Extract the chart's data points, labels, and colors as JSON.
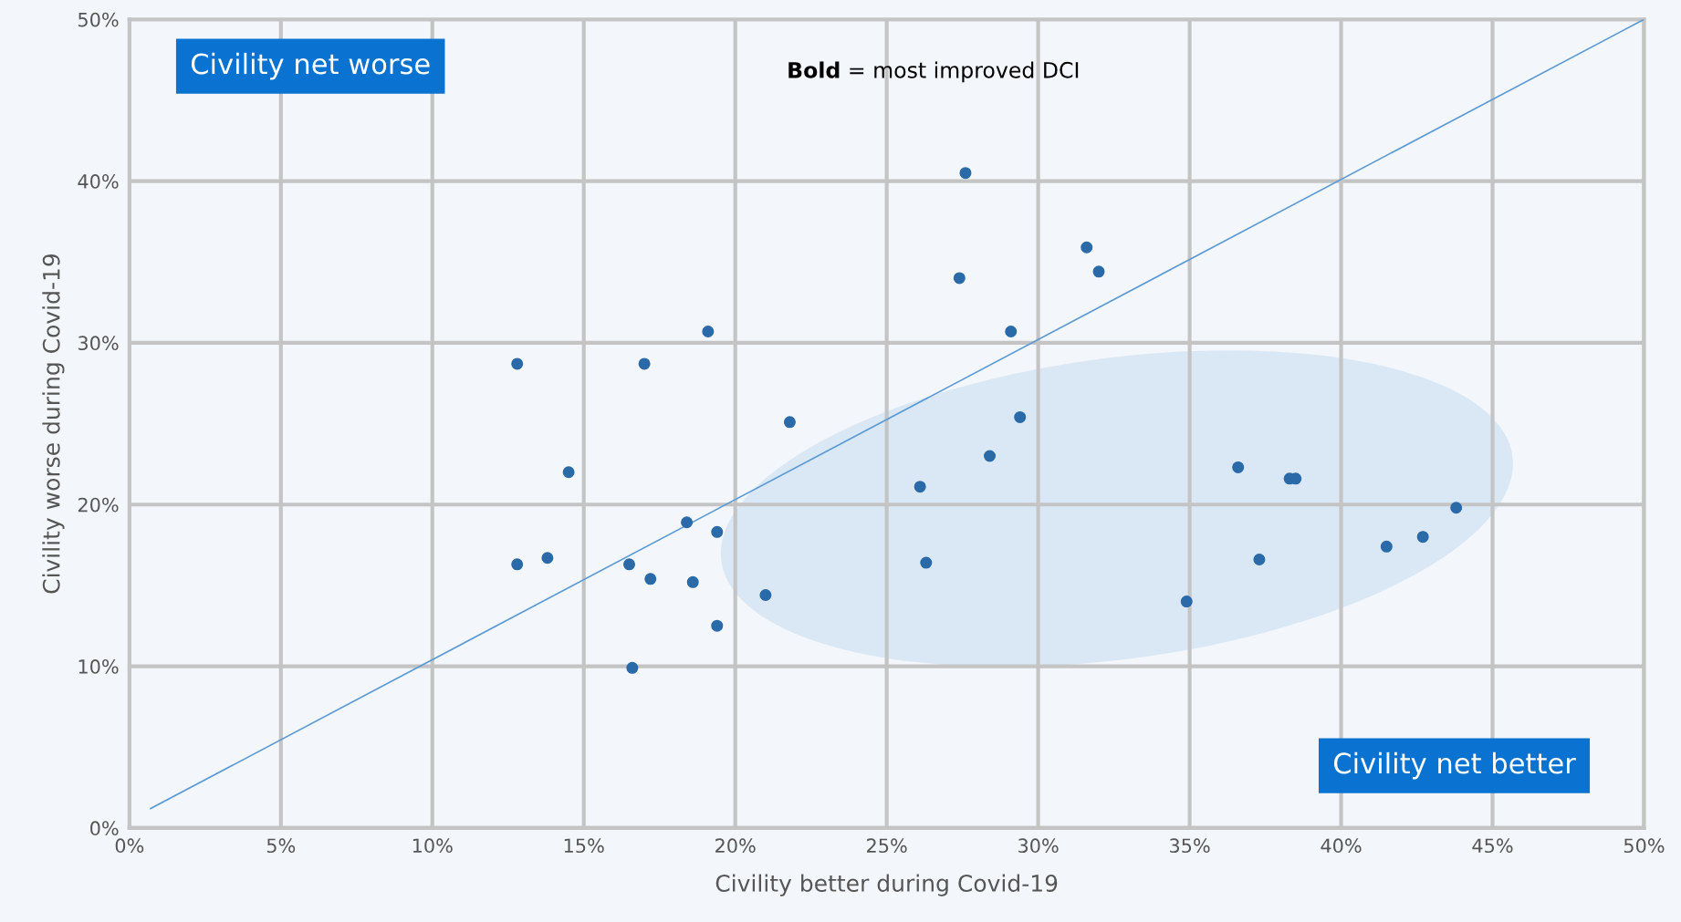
{
  "chart_data": {
    "type": "scatter",
    "xlabel": "Civility better during Covid-19",
    "ylabel": "Civility worse during Covid-19",
    "annotations": [
      "Civility net worse",
      "Civility net better",
      "Bold = most improved DCI"
    ],
    "series": [
      {
        "type": "scatter",
        "color": "#2a6aa8",
        "marker": "circle",
        "x": [
          12.8,
          17.0,
          19.1,
          14.5,
          12.8,
          13.8,
          16.5,
          17.2,
          18.6,
          18.4,
          19.4,
          19.4,
          16.6,
          21.0,
          21.8,
          27.6,
          27.4,
          29.1,
          31.6,
          32.0,
          29.4,
          28.4,
          26.1,
          26.3,
          34.9,
          36.6,
          37.3,
          38.3,
          38.5,
          41.5,
          42.7,
          43.8
        ],
        "values": [
          28.7,
          28.7,
          30.7,
          22.0,
          16.3,
          16.7,
          16.3,
          15.4,
          15.2,
          18.9,
          18.3,
          12.5,
          9.9,
          14.4,
          25.1,
          40.5,
          34.0,
          30.7,
          35.9,
          34.4,
          25.4,
          23.0,
          21.1,
          16.4,
          14.0,
          22.3,
          16.6,
          21.6,
          21.6,
          17.4,
          18.0,
          19.8
        ]
      },
      {
        "type": "line",
        "color": "#5b9bd5",
        "x": [
          0.7,
          50
        ],
        "values": [
          1.2,
          50
        ]
      }
    ],
    "xlim": [
      0,
      50
    ],
    "ylim": [
      0,
      50
    ],
    "xticks": [
      {
        "value": 0,
        "label": "0%"
      },
      {
        "value": 5,
        "label": "5%"
      },
      {
        "value": 10,
        "label": "10%"
      },
      {
        "value": 15,
        "label": "15%"
      },
      {
        "value": 20,
        "label": "20%"
      },
      {
        "value": 25,
        "label": "25%"
      },
      {
        "value": 30,
        "label": "30%"
      },
      {
        "value": 35,
        "label": "35%"
      },
      {
        "value": 40,
        "label": "40%"
      },
      {
        "value": 45,
        "label": "45%"
      },
      {
        "value": 50,
        "label": "50%"
      }
    ],
    "yticks": [
      {
        "value": 0,
        "label": "0%"
      },
      {
        "value": 10,
        "label": "10%"
      },
      {
        "value": 20,
        "label": "20%"
      },
      {
        "value": 30,
        "label": "30%"
      },
      {
        "value": 40,
        "label": "40%"
      },
      {
        "value": 50,
        "label": "50%"
      }
    ],
    "grid": true
  }
}
